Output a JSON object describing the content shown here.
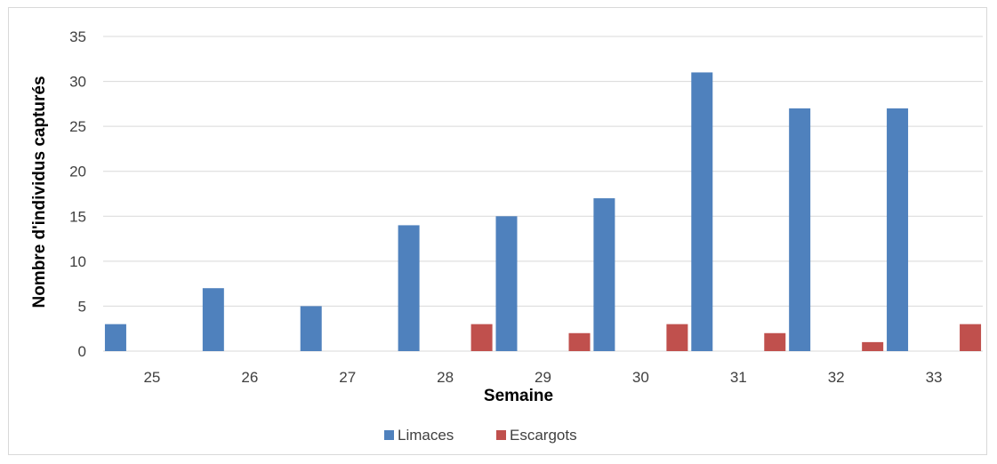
{
  "chart_data": {
    "type": "bar",
    "categories": [
      "25",
      "26",
      "27",
      "28",
      "29",
      "30",
      "31",
      "32",
      "33"
    ],
    "series": [
      {
        "name": "Limaces",
        "color": "#4f81bd",
        "values": [
          3,
          7,
          5,
          14,
          15,
          17,
          31,
          27,
          27
        ]
      },
      {
        "name": "Escargots",
        "color": "#c0504d",
        "values": [
          0,
          0,
          0,
          3,
          2,
          3,
          2,
          1,
          3
        ]
      }
    ],
    "title": "",
    "xlabel": "Semaine",
    "ylabel": "Nombre d'individus capturés",
    "ylim": [
      0,
      35
    ],
    "yticks": [
      0,
      5,
      10,
      15,
      20,
      25,
      30,
      35
    ],
    "grid": true,
    "legend_position": "bottom",
    "gridline_color": "#d9d9d9"
  }
}
